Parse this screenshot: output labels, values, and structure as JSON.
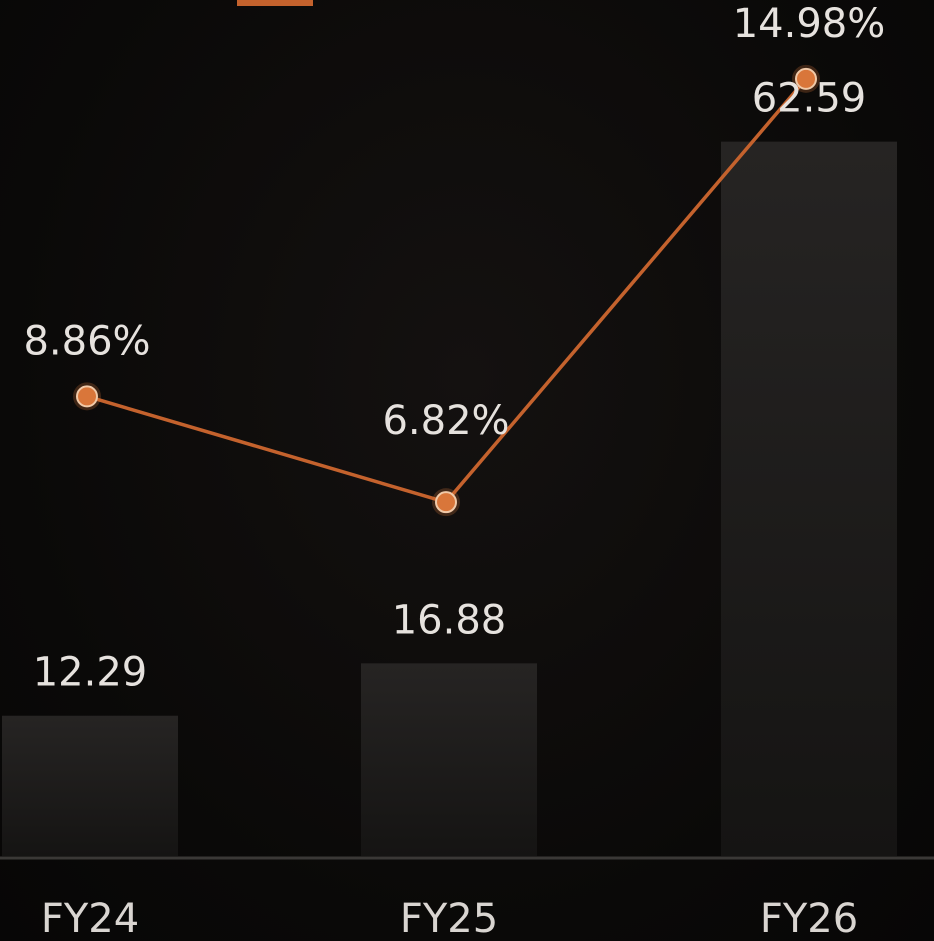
{
  "chart_data": {
    "type": "bar",
    "categories": [
      "FY24",
      "FY25",
      "FY26"
    ],
    "series": [
      {
        "kind": "bar",
        "values": [
          12.29,
          16.88,
          62.59
        ],
        "value_labels": [
          "12.29",
          "16.88",
          "62.59"
        ]
      },
      {
        "kind": "line",
        "values": [
          8.86,
          6.82,
          14.98
        ],
        "value_labels": [
          "8.86%",
          "6.82%",
          "14.98%"
        ]
      }
    ],
    "title": "",
    "xlabel": "",
    "ylabel": "",
    "bar_ylim": [
      0,
      75
    ],
    "line_ylim": [
      0,
      16.5
    ],
    "grid": false,
    "colors": {
      "bar_top": "#262423",
      "bar_bottom": "#151413",
      "line": "#c4622d",
      "marker": "#d9763a",
      "axis": "#3a3836"
    }
  }
}
